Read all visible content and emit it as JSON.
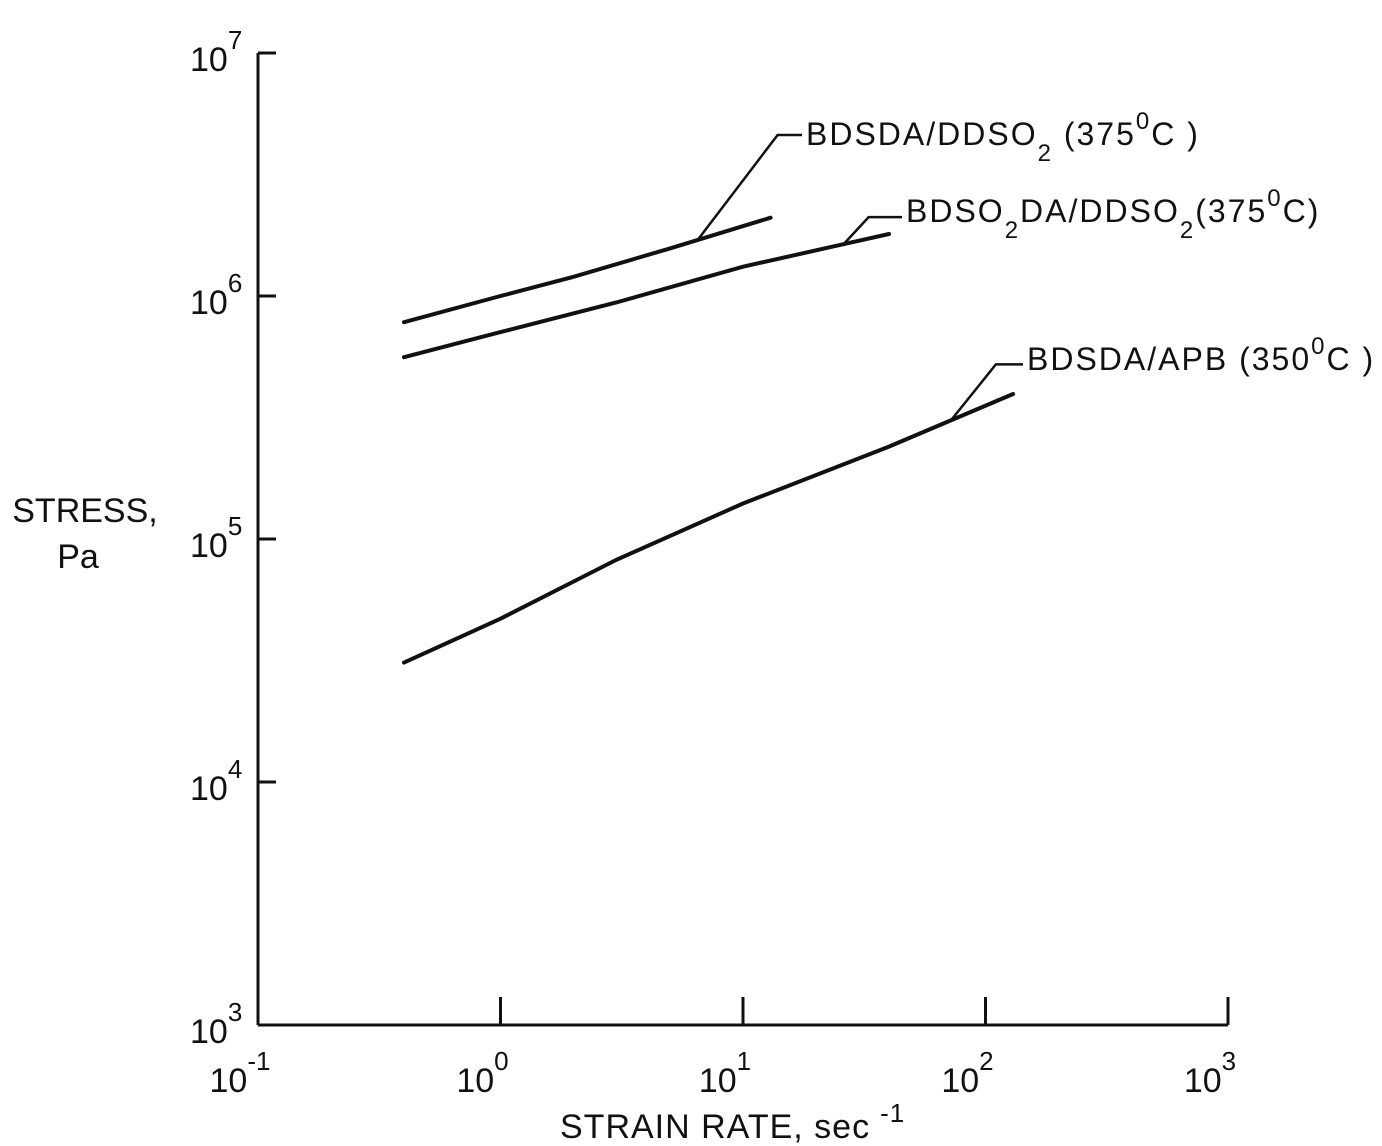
{
  "chart_data": {
    "type": "line",
    "xscale": "log",
    "yscale": "log",
    "xlim": [
      0.1,
      1000
    ],
    "ylim": [
      1000,
      10000000
    ],
    "xlabel": "STRAIN RATE, sec",
    "xlabel_exp": "-1",
    "ylabel_line1": "STRESS,",
    "ylabel_line2": "Pa",
    "x_ticks": [
      {
        "value": 0.1,
        "base": "10",
        "exp": "-1"
      },
      {
        "value": 1,
        "base": "10",
        "exp": "0"
      },
      {
        "value": 10,
        "base": "10",
        "exp": "1"
      },
      {
        "value": 100,
        "base": "10",
        "exp": "2"
      },
      {
        "value": 1000,
        "base": "10",
        "exp": "3"
      }
    ],
    "y_ticks": [
      {
        "value": 1000,
        "base": "10",
        "exp": "3"
      },
      {
        "value": 10000,
        "base": "10",
        "exp": "4"
      },
      {
        "value": 100000,
        "base": "10",
        "exp": "5"
      },
      {
        "value": 1000000,
        "base": "10",
        "exp": "6"
      },
      {
        "value": 10000000,
        "base": "10",
        "exp": "7"
      }
    ],
    "series": [
      {
        "label_parts": [
          "BDSDA/DDSO",
          "2",
          " (375",
          "0",
          "C )"
        ],
        "x": [
          0.4,
          1,
          2,
          5,
          13
        ],
        "y": [
          780000,
          1000000,
          1200000,
          1570000,
          2100000
        ],
        "label_at_x": 6.5
      },
      {
        "label_parts": [
          "BDSO",
          "2",
          "DA/DDSO",
          "2",
          "(375",
          "0",
          "C)"
        ],
        "x": [
          0.4,
          1,
          3,
          10,
          25,
          40
        ],
        "y": [
          560000,
          710000,
          940000,
          1320000,
          1620000,
          1800000
        ],
        "label_at_x": 26
      },
      {
        "label_parts": [
          "BDSDA/APB (350",
          "0",
          "C )"
        ],
        "x": [
          0.4,
          1,
          3,
          10,
          40,
          130
        ],
        "y": [
          31000,
          47000,
          82000,
          140000,
          240000,
          395000
        ],
        "label_at_x": 72
      }
    ]
  }
}
